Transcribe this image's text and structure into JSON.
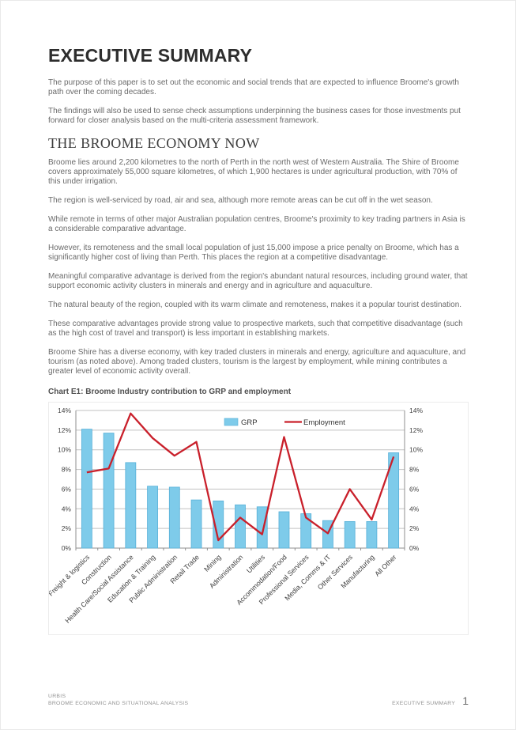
{
  "document": {
    "title": "EXECUTIVE SUMMARY",
    "intro_paragraphs": [
      "The purpose of this paper is to set out the economic and social trends that are expected to influence Broome's growth path over the coming decades.",
      "The findings will also be used to sense check assumptions underpinning the business cases for those investments put forward for closer analysis based on the multi-criteria assessment framework."
    ],
    "section_heading": "THE BROOME ECONOMY NOW",
    "body_paragraphs": [
      "Broome lies around 2,200 kilometres to the north of Perth in the north west of Western Australia. The Shire of Broome covers approximately 55,000 square kilometres, of which 1,900 hectares is under agricultural production, with 70% of this under irrigation.",
      "The region is well-serviced by road, air and sea, although more remote areas can be cut off in the wet season.",
      "While remote in terms of other major Australian population centres, Broome's proximity to key trading partners in Asia is a considerable comparative advantage.",
      "However, its remoteness and the small local population of just 15,000 impose a price penalty on Broome, which has a significantly higher cost of living than Perth. This places the region at a competitive disadvantage.",
      "Meaningful comparative advantage is derived from the region's abundant natural resources, including ground water, that support economic activity clusters in minerals and energy and in agriculture and aquaculture.",
      "The natural beauty of the region, coupled with its warm climate and remoteness, makes it a popular tourist destination.",
      "These comparative advantages provide strong value to prospective markets, such that competitive disadvantage (such as the high cost of travel and transport) is less important in establishing markets.",
      "Broome Shire has a diverse economy, with key traded clusters in minerals and energy, agriculture and aquaculture, and tourism (as noted above). Among traded clusters, tourism is the largest by employment, while mining contributes a greater level of economic activity overall."
    ],
    "chart_caption": "Chart E1: Broome Industry contribution to GRP and employment",
    "footer": {
      "brand": "URBIS",
      "report_title": "BROOME ECONOMIC AND SITUATIONAL ANALYSIS",
      "section_label": "EXECUTIVE SUMMARY",
      "page_number": "1"
    }
  },
  "chart_data": {
    "type": "bar",
    "title": "Chart E1: Broome Industry contribution to GRP and employment",
    "categories": [
      "Freight & logistics",
      "Construction",
      "Health Care/Social Assistance",
      "Education & Training",
      "Public Administration",
      "Retail Trade",
      "Mining",
      "Administration",
      "Utilities",
      "Accommodation/Food",
      "Professional Services",
      "Media, Comms & IT",
      "Other Services",
      "Manufacturing",
      "All Other"
    ],
    "series": [
      {
        "name": "GRP",
        "render": "bar",
        "color": "#7ECBEA",
        "border_color": "#58B0D8",
        "values": [
          12.1,
          11.7,
          8.7,
          6.3,
          6.2,
          4.9,
          4.8,
          4.4,
          4.2,
          3.7,
          3.5,
          2.8,
          2.7,
          2.7,
          9.7
        ]
      },
      {
        "name": "Employment",
        "render": "line",
        "color": "#C9202B",
        "values": [
          7.7,
          8.1,
          13.7,
          11.2,
          9.4,
          10.8,
          0.8,
          3.1,
          1.4,
          11.3,
          3.1,
          1.5,
          6.0,
          2.9,
          9.3
        ]
      }
    ],
    "xlabel": "",
    "ylabel": "",
    "ylim": [
      0,
      14
    ],
    "ytick_step": 2,
    "ytick_suffix": "%",
    "y_axis_sides": "both",
    "grid": true,
    "legend_position": "top-center-inside",
    "grid_color": "#C2C2C2",
    "axis_color": "#8F8F8F",
    "tick_label_color": "#3F3F3F"
  }
}
